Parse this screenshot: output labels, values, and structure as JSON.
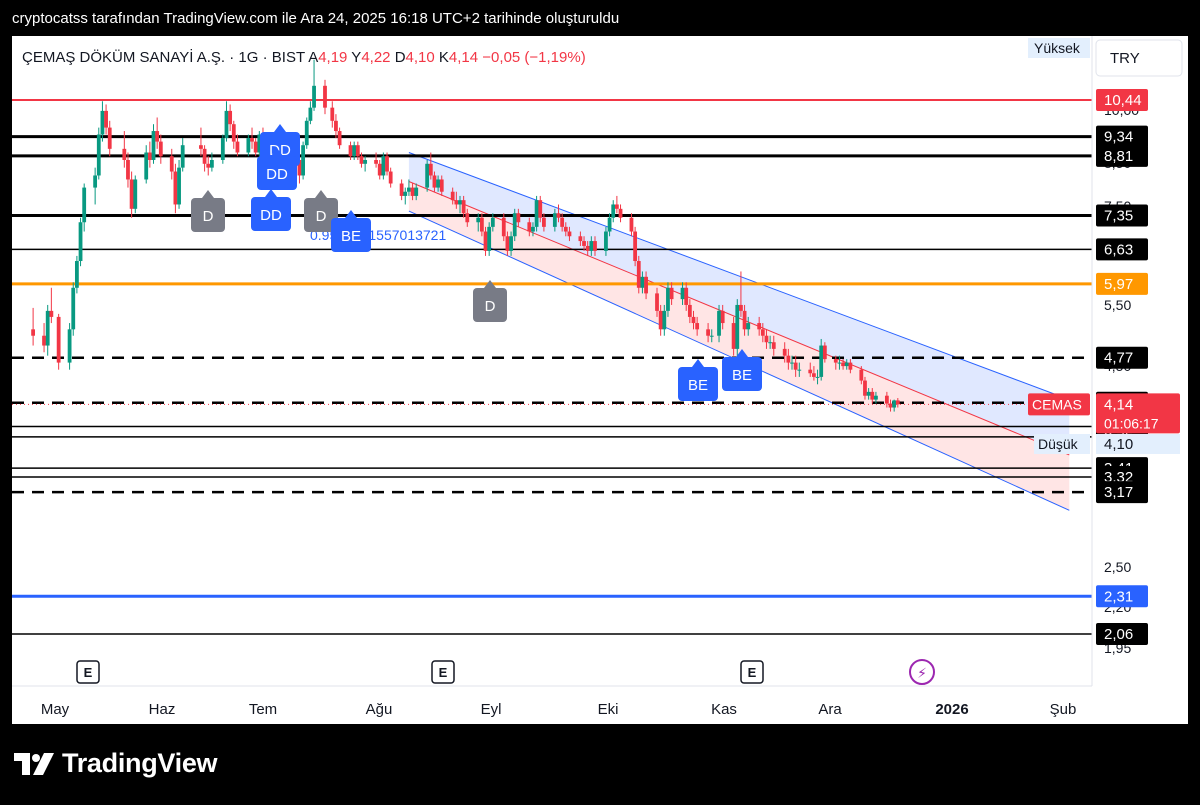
{
  "header": {
    "caption": "cryptocatss tarafından TradingView.com ile Ara 24, 2025 16:18 UTC+2 tarihinde oluşturuldu"
  },
  "brand": {
    "name": "TradingView"
  },
  "colors": {
    "up": "#089981",
    "down": "#f23645",
    "blue": "#2962ff",
    "orange": "#ff9800",
    "channel_fill_blue": "#dbe4ff",
    "channel_fill_red": "#ffe0e0"
  },
  "chart_data": {
    "type": "candlestick",
    "symbol_line": {
      "name": "ÇEMAŞ DÖKÜM SANAYİ A.Ş. · 1G · BIST",
      "open_label": "A",
      "open": "4,19",
      "high_label": "Y",
      "high": "4,22",
      "low_label": "D",
      "low": "4,10",
      "close_label": "K",
      "close": "4,14",
      "change": "−0,05 (−1,19%)"
    },
    "currency": "TRY",
    "x_ticks": [
      "May",
      "Haz",
      "Tem",
      "Ağu",
      "Eyl",
      "Eki",
      "Kas",
      "Ara",
      "2026",
      "Şub"
    ],
    "y_ticks": [
      "10,00",
      "8,50",
      "7,50",
      "5,50",
      "4,50",
      "2,50",
      "2,20",
      "1,95"
    ],
    "ylim": [
      1.95,
      11.8
    ],
    "scale": "log",
    "horizontal_levels": [
      {
        "value": 10.44,
        "label": "10,44",
        "style": "solid",
        "color": "red"
      },
      {
        "value": 9.34,
        "label": "9,34",
        "style": "solid",
        "color": "black"
      },
      {
        "value": 8.81,
        "label": "8,81",
        "style": "solid",
        "color": "black"
      },
      {
        "value": 7.35,
        "label": "7,35",
        "style": "solid",
        "color": "black"
      },
      {
        "value": 6.63,
        "label": "6,63",
        "style": "solid-thin",
        "color": "black"
      },
      {
        "value": 5.97,
        "label": "5,97",
        "style": "solid",
        "color": "orange"
      },
      {
        "value": 4.77,
        "label": "4,77",
        "style": "dashed",
        "color": "black"
      },
      {
        "value": 4.16,
        "label": "4,16",
        "style": "dashed",
        "color": "black"
      },
      {
        "value": 3.87,
        "label": "3,87",
        "style": "solid-thin",
        "color": "black"
      },
      {
        "value": 3.75,
        "label": "3,75",
        "style": "solid-thin",
        "color": "black"
      },
      {
        "value": 3.41,
        "label": "3,41",
        "style": "solid-thin",
        "color": "black"
      },
      {
        "value": 3.32,
        "label": "3,32",
        "style": "solid-thin",
        "color": "black"
      },
      {
        "value": 3.17,
        "label": "3,17",
        "style": "dashed",
        "color": "black"
      },
      {
        "value": 2.31,
        "label": "2,31",
        "style": "solid",
        "color": "blue"
      },
      {
        "value": 2.06,
        "label": "2,06",
        "style": "solid-thin",
        "color": "black"
      }
    ],
    "last_price": {
      "value": 4.14,
      "label": "4,14",
      "ticker": "CEMAS",
      "countdown": "01:06:17"
    },
    "high_label": "Yüksek",
    "low_label": "Düşük",
    "low_value": "4,10",
    "channel_annotation": "0.9563941557013721",
    "pattern_labels": [
      "DD",
      "DD",
      "DD",
      "D",
      "D",
      "BE",
      "D",
      "BE",
      "BE"
    ],
    "event_markers": [
      "E",
      "E",
      "E"
    ],
    "flash_marker": "⚡",
    "channel": {
      "start_date": "2025-08-06",
      "end_date": "2026-02-03",
      "upper_start": 8.9,
      "upper_end": 4.2,
      "lower_start": 7.45,
      "lower_end": 3.0,
      "mid_start": 8.15,
      "mid_end": 3.55
    },
    "candles": [
      [
        "2025-04-25",
        5.2,
        5.55,
        4.95,
        5.1
      ],
      [
        "2025-04-28",
        5.1,
        5.3,
        4.85,
        4.95
      ],
      [
        "2025-04-29",
        4.95,
        5.6,
        4.8,
        5.5
      ],
      [
        "2025-04-30",
        5.5,
        5.9,
        5.3,
        5.4
      ],
      [
        "2025-05-02",
        5.4,
        5.45,
        4.6,
        4.7
      ],
      [
        "2025-05-05",
        4.7,
        5.3,
        4.6,
        5.2
      ],
      [
        "2025-05-06",
        5.2,
        6.0,
        5.1,
        5.9
      ],
      [
        "2025-05-07",
        5.9,
        6.5,
        5.8,
        6.4
      ],
      [
        "2025-05-08",
        6.4,
        7.3,
        6.3,
        7.2
      ],
      [
        "2025-05-09",
        7.2,
        8.1,
        7.0,
        8.0
      ],
      [
        "2025-05-12",
        8.0,
        8.5,
        7.6,
        8.3
      ],
      [
        "2025-05-13",
        8.3,
        9.6,
        8.2,
        9.4
      ],
      [
        "2025-05-14",
        9.4,
        10.4,
        9.2,
        10.1
      ],
      [
        "2025-05-15",
        10.1,
        10.3,
        9.4,
        9.6
      ],
      [
        "2025-05-16",
        9.6,
        9.8,
        8.8,
        9.0
      ],
      [
        "2025-05-20",
        9.0,
        9.5,
        8.5,
        8.7
      ],
      [
        "2025-05-21",
        8.7,
        8.9,
        8.0,
        8.2
      ],
      [
        "2025-05-22",
        8.2,
        8.4,
        7.3,
        7.5
      ],
      [
        "2025-05-23",
        7.5,
        8.3,
        7.4,
        8.2
      ],
      [
        "2025-05-26",
        8.2,
        9.1,
        8.1,
        8.9
      ],
      [
        "2025-05-27",
        8.9,
        9.2,
        8.5,
        8.7
      ],
      [
        "2025-05-28",
        8.7,
        9.7,
        8.6,
        9.5
      ],
      [
        "2025-05-29",
        9.5,
        9.9,
        9.0,
        9.2
      ],
      [
        "2025-05-30",
        9.2,
        9.4,
        8.6,
        8.8
      ],
      [
        "2025-06-02",
        8.8,
        9.0,
        8.2,
        8.4
      ],
      [
        "2025-06-03",
        8.4,
        8.6,
        7.4,
        7.6
      ],
      [
        "2025-06-04",
        7.6,
        8.7,
        7.5,
        8.5
      ],
      [
        "2025-06-05",
        8.5,
        9.3,
        8.4,
        9.1
      ],
      [
        "2025-06-10",
        9.1,
        9.6,
        8.8,
        9.0
      ],
      [
        "2025-06-11",
        9.0,
        9.1,
        8.4,
        8.6
      ],
      [
        "2025-06-12",
        8.6,
        8.8,
        8.3,
        8.5
      ],
      [
        "2025-06-13",
        8.5,
        8.9,
        8.4,
        8.7
      ],
      [
        "2025-06-16",
        8.7,
        9.4,
        8.6,
        9.3
      ],
      [
        "2025-06-17",
        9.3,
        10.4,
        9.2,
        10.1
      ],
      [
        "2025-06-18",
        10.1,
        10.3,
        9.5,
        9.7
      ],
      [
        "2025-06-19",
        9.7,
        9.8,
        9.0,
        9.2
      ],
      [
        "2025-06-20",
        9.2,
        9.4,
        8.8,
        8.9
      ],
      [
        "2025-06-23",
        8.9,
        9.4,
        8.8,
        9.3
      ],
      [
        "2025-06-24",
        9.3,
        9.6,
        9.0,
        9.2
      ],
      [
        "2025-06-25",
        9.2,
        9.3,
        8.8,
        8.9
      ],
      [
        "2025-06-26",
        8.9,
        9.5,
        8.8,
        9.4
      ],
      [
        "2025-06-27",
        9.4,
        9.6,
        9.1,
        9.2
      ],
      [
        "2025-06-30",
        9.2,
        9.3,
        8.6,
        8.7
      ],
      [
        "2025-07-01",
        8.7,
        9.4,
        8.6,
        9.3
      ],
      [
        "2025-07-02",
        9.3,
        9.5,
        9.1,
        9.2
      ],
      [
        "2025-07-03",
        9.2,
        9.3,
        8.9,
        9.0
      ],
      [
        "2025-07-04",
        9.0,
        9.2,
        8.6,
        8.7
      ],
      [
        "2025-07-07",
        8.7,
        8.9,
        8.1,
        8.3
      ],
      [
        "2025-07-08",
        8.3,
        9.2,
        8.2,
        9.1
      ],
      [
        "2025-07-09",
        9.1,
        9.9,
        9.0,
        9.8
      ],
      [
        "2025-07-10",
        9.8,
        10.4,
        9.7,
        10.2
      ],
      [
        "2025-07-11",
        10.2,
        11.8,
        10.1,
        10.9
      ],
      [
        "2025-07-14",
        10.9,
        11.1,
        10.0,
        10.2
      ],
      [
        "2025-07-16",
        10.2,
        10.4,
        9.6,
        9.8
      ],
      [
        "2025-07-17",
        9.8,
        10.0,
        9.3,
        9.5
      ],
      [
        "2025-07-18",
        9.5,
        9.6,
        9.0,
        9.1
      ],
      [
        "2025-07-21",
        9.1,
        9.2,
        8.7,
        8.8
      ],
      [
        "2025-07-22",
        8.8,
        9.2,
        8.7,
        9.1
      ],
      [
        "2025-07-23",
        9.1,
        9.2,
        8.7,
        8.8
      ],
      [
        "2025-07-24",
        8.8,
        8.9,
        8.5,
        8.6
      ],
      [
        "2025-07-25",
        8.6,
        8.8,
        8.4,
        8.7
      ],
      [
        "2025-07-28",
        8.7,
        8.9,
        8.5,
        8.6
      ],
      [
        "2025-07-29",
        8.6,
        8.7,
        8.2,
        8.3
      ],
      [
        "2025-07-30",
        8.3,
        8.9,
        8.2,
        8.8
      ],
      [
        "2025-07-31",
        8.8,
        8.9,
        8.3,
        8.4
      ],
      [
        "2025-08-01",
        8.4,
        8.5,
        8.0,
        8.1
      ],
      [
        "2025-08-04",
        8.1,
        8.2,
        7.7,
        7.8
      ],
      [
        "2025-08-05",
        7.8,
        8.0,
        7.6,
        7.9
      ],
      [
        "2025-08-06",
        7.9,
        8.2,
        7.8,
        8.0
      ],
      [
        "2025-08-07",
        8.0,
        8.1,
        7.7,
        7.8
      ],
      [
        "2025-08-08",
        7.8,
        8.1,
        7.7,
        8.0
      ],
      [
        "2025-08-11",
        8.0,
        8.7,
        7.9,
        8.6
      ],
      [
        "2025-08-12",
        8.6,
        8.9,
        8.2,
        8.3
      ],
      [
        "2025-08-13",
        8.3,
        8.4,
        7.9,
        8.0
      ],
      [
        "2025-08-14",
        8.0,
        8.3,
        7.9,
        8.2
      ],
      [
        "2025-08-15",
        8.2,
        8.3,
        7.8,
        7.9
      ],
      [
        "2025-08-18",
        7.9,
        8.0,
        7.6,
        7.7
      ],
      [
        "2025-08-19",
        7.7,
        7.9,
        7.5,
        7.6
      ],
      [
        "2025-08-20",
        7.6,
        7.8,
        7.4,
        7.7
      ],
      [
        "2025-08-21",
        7.7,
        7.8,
        7.3,
        7.4
      ],
      [
        "2025-08-22",
        7.4,
        7.5,
        7.1,
        7.2
      ],
      [
        "2025-08-25",
        7.2,
        7.4,
        7.0,
        7.3
      ],
      [
        "2025-08-26",
        7.3,
        7.4,
        6.9,
        7.0
      ],
      [
        "2025-08-27",
        7.0,
        7.1,
        6.5,
        6.6
      ],
      [
        "2025-08-28",
        6.6,
        7.2,
        6.5,
        7.1
      ],
      [
        "2025-08-29",
        7.1,
        7.4,
        7.0,
        7.3
      ],
      [
        "2025-09-01",
        7.3,
        7.4,
        6.8,
        6.9
      ],
      [
        "2025-09-02",
        6.9,
        7.0,
        6.5,
        6.6
      ],
      [
        "2025-09-03",
        6.6,
        7.0,
        6.5,
        6.9
      ],
      [
        "2025-09-04",
        6.9,
        7.5,
        6.8,
        7.4
      ],
      [
        "2025-09-05",
        7.4,
        7.5,
        7.1,
        7.2
      ],
      [
        "2025-09-08",
        7.2,
        7.3,
        6.9,
        7.0
      ],
      [
        "2025-09-09",
        7.0,
        7.2,
        6.9,
        7.1
      ],
      [
        "2025-09-10",
        7.1,
        7.8,
        7.0,
        7.7
      ],
      [
        "2025-09-11",
        7.7,
        7.8,
        7.2,
        7.3
      ],
      [
        "2025-09-12",
        7.3,
        7.4,
        7.0,
        7.1
      ],
      [
        "2025-09-15",
        7.1,
        7.5,
        7.0,
        7.4
      ],
      [
        "2025-09-16",
        7.4,
        7.6,
        7.2,
        7.3
      ],
      [
        "2025-09-17",
        7.3,
        7.4,
        7.0,
        7.1
      ],
      [
        "2025-09-18",
        7.1,
        7.2,
        6.9,
        7.0
      ],
      [
        "2025-09-19",
        7.0,
        7.1,
        6.8,
        6.9
      ],
      [
        "2025-09-22",
        6.9,
        7.0,
        6.7,
        6.8
      ],
      [
        "2025-09-23",
        6.8,
        6.9,
        6.6,
        6.7
      ],
      [
        "2025-09-24",
        6.7,
        6.8,
        6.5,
        6.6
      ],
      [
        "2025-09-25",
        6.6,
        6.9,
        6.5,
        6.8
      ],
      [
        "2025-09-26",
        6.8,
        6.9,
        6.5,
        6.6
      ],
      [
        "2025-09-29",
        6.6,
        7.1,
        6.5,
        7.0
      ],
      [
        "2025-09-30",
        7.0,
        7.4,
        6.9,
        7.3
      ],
      [
        "2025-10-01",
        7.3,
        7.7,
        7.2,
        7.6
      ],
      [
        "2025-10-02",
        7.6,
        7.8,
        7.4,
        7.5
      ],
      [
        "2025-10-03",
        7.5,
        7.6,
        7.2,
        7.3
      ],
      [
        "2025-10-06",
        7.3,
        7.4,
        6.9,
        7.0
      ],
      [
        "2025-10-07",
        7.0,
        7.1,
        6.3,
        6.4
      ],
      [
        "2025-10-08",
        6.4,
        6.5,
        5.8,
        5.9
      ],
      [
        "2025-10-09",
        5.9,
        6.2,
        5.8,
        6.1
      ],
      [
        "2025-10-10",
        6.1,
        6.2,
        5.7,
        5.8
      ],
      [
        "2025-10-13",
        5.8,
        5.9,
        5.4,
        5.5
      ],
      [
        "2025-10-14",
        5.5,
        5.6,
        5.1,
        5.2
      ],
      [
        "2025-10-15",
        5.2,
        5.6,
        5.1,
        5.5
      ],
      [
        "2025-10-16",
        5.5,
        6.0,
        5.4,
        5.9
      ],
      [
        "2025-10-17",
        5.9,
        6.0,
        5.6,
        5.7
      ],
      [
        "2025-10-20",
        5.7,
        6.0,
        5.6,
        5.9
      ],
      [
        "2025-10-21",
        5.9,
        6.0,
        5.5,
        5.6
      ],
      [
        "2025-10-22",
        5.6,
        5.7,
        5.3,
        5.4
      ],
      [
        "2025-10-23",
        5.4,
        5.5,
        5.2,
        5.3
      ],
      [
        "2025-10-24",
        5.3,
        5.4,
        5.1,
        5.2
      ],
      [
        "2025-10-27",
        5.2,
        5.3,
        5.0,
        5.1
      ],
      [
        "2025-10-28",
        5.1,
        5.2,
        5.0,
        5.1
      ],
      [
        "2025-10-30",
        5.1,
        5.6,
        5.0,
        5.5
      ],
      [
        "2025-10-31",
        5.5,
        5.6,
        5.2,
        5.3
      ],
      [
        "2025-11-03",
        5.3,
        5.4,
        4.8,
        4.9
      ],
      [
        "2025-11-04",
        4.9,
        5.7,
        4.8,
        5.6
      ],
      [
        "2025-11-05",
        5.6,
        6.2,
        5.4,
        5.5
      ],
      [
        "2025-11-06",
        5.5,
        5.6,
        5.1,
        5.2
      ],
      [
        "2025-11-07",
        5.2,
        5.4,
        5.1,
        5.3
      ],
      [
        "2025-11-10",
        5.3,
        5.4,
        5.1,
        5.2
      ],
      [
        "2025-11-11",
        5.2,
        5.3,
        5.0,
        5.1
      ],
      [
        "2025-11-12",
        5.1,
        5.2,
        4.9,
        5.0
      ],
      [
        "2025-11-13",
        5.0,
        5.1,
        4.9,
        5.0
      ],
      [
        "2025-11-14",
        5.0,
        5.1,
        4.8,
        4.9
      ],
      [
        "2025-11-17",
        4.9,
        5.0,
        4.7,
        4.8
      ],
      [
        "2025-11-18",
        4.8,
        4.9,
        4.6,
        4.7
      ],
      [
        "2025-11-19",
        4.7,
        4.8,
        4.6,
        4.7
      ],
      [
        "2025-11-20",
        4.7,
        4.8,
        4.5,
        4.6
      ],
      [
        "2025-11-21",
        4.6,
        4.7,
        4.5,
        4.6
      ],
      [
        "2025-11-24",
        4.6,
        4.7,
        4.5,
        4.55
      ],
      [
        "2025-11-25",
        4.55,
        4.65,
        4.45,
        4.5
      ],
      [
        "2025-11-26",
        4.5,
        4.6,
        4.4,
        4.5
      ],
      [
        "2025-11-27",
        4.5,
        5.05,
        4.45,
        4.95
      ],
      [
        "2025-11-28",
        4.95,
        5.0,
        4.7,
        4.75
      ],
      [
        "2025-12-01",
        4.75,
        4.8,
        4.6,
        4.7
      ],
      [
        "2025-12-02",
        4.7,
        4.8,
        4.6,
        4.7
      ],
      [
        "2025-12-03",
        4.7,
        4.75,
        4.6,
        4.65
      ],
      [
        "2025-12-04",
        4.65,
        4.75,
        4.6,
        4.7
      ],
      [
        "2025-12-05",
        4.7,
        4.75,
        4.55,
        4.6
      ],
      [
        "2025-12-08",
        4.6,
        4.65,
        4.4,
        4.45
      ],
      [
        "2025-12-09",
        4.45,
        4.5,
        4.2,
        4.25
      ],
      [
        "2025-12-10",
        4.25,
        4.35,
        4.2,
        4.3
      ],
      [
        "2025-12-11",
        4.3,
        4.35,
        4.15,
        4.2
      ],
      [
        "2025-12-12",
        4.2,
        4.3,
        4.15,
        4.25
      ],
      [
        "2025-12-15",
        4.25,
        4.3,
        4.1,
        4.15
      ],
      [
        "2025-12-16",
        4.15,
        4.2,
        4.05,
        4.1
      ],
      [
        "2025-12-17",
        4.1,
        4.2,
        4.05,
        4.19
      ],
      [
        "2025-12-18",
        4.19,
        4.22,
        4.1,
        4.14
      ]
    ]
  }
}
